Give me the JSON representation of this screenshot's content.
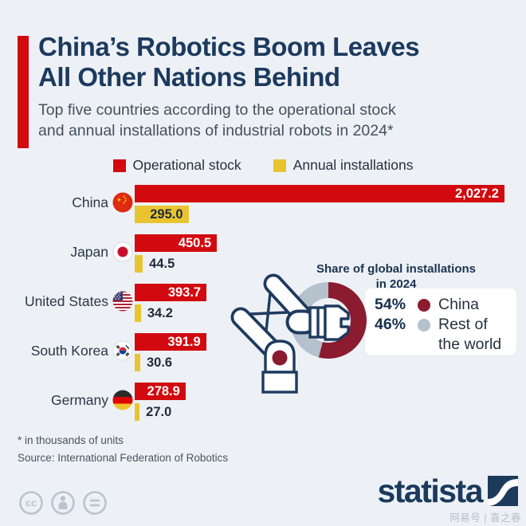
{
  "header": {
    "title_line1": "China’s Robotics Boom Leaves",
    "title_line2": "All Other Nations Behind",
    "subtitle_line1": "Top five countries according to the operational stock",
    "subtitle_line2": "and annual installations of industrial robots in 2024*"
  },
  "legend": {
    "items": [
      {
        "label": "Operational stock",
        "color": "#d20a10"
      },
      {
        "label": "Annual installations",
        "color": "#e9c431"
      }
    ]
  },
  "chart_data": {
    "type": "bar",
    "orientation": "horizontal",
    "unit": "thousands of units",
    "xmax": 2027.2,
    "categories": [
      "China",
      "Japan",
      "United States",
      "South Korea",
      "Germany"
    ],
    "series": [
      {
        "name": "Operational stock",
        "color": "#d20a10",
        "values": [
          2027.2,
          450.5,
          393.7,
          391.9,
          278.9
        ]
      },
      {
        "name": "Annual installations",
        "color": "#e9c431",
        "values": [
          295.0,
          44.5,
          34.2,
          30.6,
          27.0
        ]
      }
    ],
    "value_labels": [
      [
        "2,027.2",
        "450.5",
        "393.7",
        "391.9",
        "278.9"
      ],
      [
        "295.0",
        "44.5",
        "34.2",
        "30.6",
        "27.0"
      ]
    ]
  },
  "donut": {
    "title_line1": "Share of global installations",
    "title_line2": "in 2024",
    "slices": [
      {
        "label": "China",
        "pct": 54,
        "display": "54%",
        "color": "#8b1b2f"
      },
      {
        "label": "Rest of the world",
        "label_lines": [
          "Rest of",
          "the world"
        ],
        "pct": 46,
        "display": "46%",
        "color": "#b5c1cc"
      }
    ]
  },
  "footer": {
    "footnote": "* in thousands of units",
    "source": "Source: International Federation of Robotics",
    "brand": "statista",
    "watermark": "网易号 | 喜之春"
  },
  "colors": {
    "background": "#edf1f6",
    "navy": "#1c3a5e",
    "red": "#d20a10",
    "yellow": "#e9c431",
    "maroon": "#8b1b2f",
    "donut_gray": "#b5c1cc"
  }
}
